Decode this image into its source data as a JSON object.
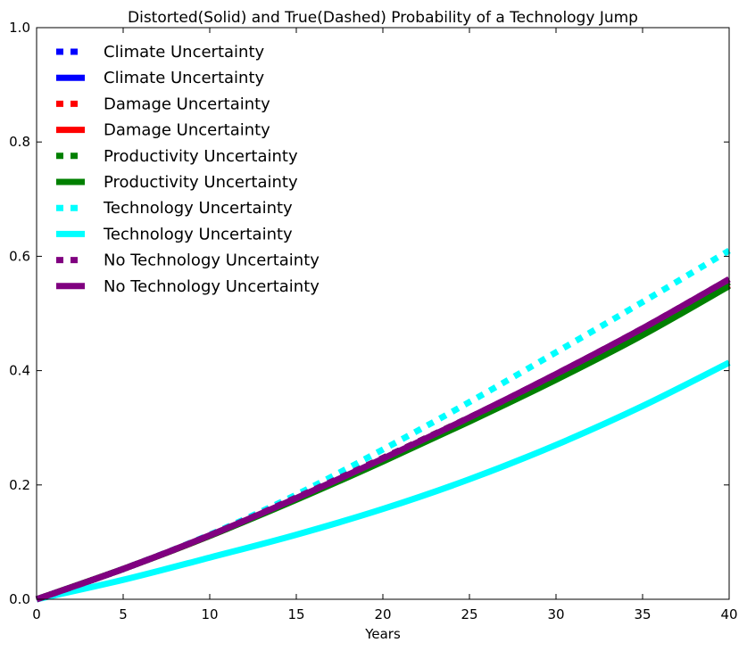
{
  "chart_data": {
    "type": "line",
    "title": "Distorted(Solid) and True(Dashed) Probability of a Technology Jump",
    "xlabel": "Years",
    "ylabel": "",
    "xlim": [
      0,
      40
    ],
    "ylim": [
      0,
      1.0
    ],
    "x_ticks": [
      0,
      5,
      10,
      15,
      20,
      25,
      30,
      35,
      40
    ],
    "y_ticks": [
      0.0,
      0.2,
      0.4,
      0.6,
      0.8,
      1.0
    ],
    "x_tick_labels": [
      "0",
      "5",
      "10",
      "15",
      "20",
      "25",
      "30",
      "35",
      "40"
    ],
    "y_tick_labels": [
      "0.0",
      "0.2",
      "0.4",
      "0.6",
      "0.8",
      "1.0"
    ],
    "grid": false,
    "legend_position": "top-left",
    "x": [
      0,
      5,
      10,
      15,
      20,
      25,
      30,
      35,
      40
    ],
    "series": [
      {
        "name": "Climate Uncertainty",
        "style": "dashed",
        "color": "#0000ff",
        "values": [
          0,
          0.053,
          0.112,
          0.178,
          0.247,
          0.318,
          0.392,
          0.47,
          0.555
        ]
      },
      {
        "name": "Climate Uncertainty",
        "style": "solid",
        "color": "#0000ff",
        "values": [
          0,
          0.053,
          0.111,
          0.175,
          0.243,
          0.314,
          0.387,
          0.465,
          0.55
        ]
      },
      {
        "name": "Damage Uncertainty",
        "style": "dashed",
        "color": "#ff0000",
        "values": [
          0,
          0.053,
          0.112,
          0.178,
          0.247,
          0.318,
          0.392,
          0.47,
          0.555
        ]
      },
      {
        "name": "Damage Uncertainty",
        "style": "solid",
        "color": "#ff0000",
        "values": [
          0,
          0.053,
          0.111,
          0.175,
          0.243,
          0.314,
          0.387,
          0.465,
          0.55
        ]
      },
      {
        "name": "Productivity Uncertainty",
        "style": "dashed",
        "color": "#008000",
        "values": [
          0,
          0.053,
          0.112,
          0.178,
          0.247,
          0.318,
          0.392,
          0.47,
          0.555
        ]
      },
      {
        "name": "Productivity Uncertainty",
        "style": "solid",
        "color": "#008000",
        "values": [
          0,
          0.053,
          0.111,
          0.174,
          0.241,
          0.311,
          0.384,
          0.462,
          0.548
        ]
      },
      {
        "name": "Technology Uncertainty",
        "style": "dashed",
        "color": "#00ffff",
        "values": [
          0,
          0.053,
          0.113,
          0.183,
          0.262,
          0.345,
          0.432,
          0.52,
          0.61
        ]
      },
      {
        "name": "Technology Uncertainty",
        "style": "solid",
        "color": "#00ffff",
        "values": [
          0,
          0.034,
          0.073,
          0.113,
          0.158,
          0.21,
          0.27,
          0.338,
          0.414
        ]
      },
      {
        "name": "No Technology Uncertainty",
        "style": "dashed",
        "color": "#800080",
        "values": [
          0,
          0.053,
          0.112,
          0.178,
          0.247,
          0.318,
          0.394,
          0.474,
          0.56
        ]
      },
      {
        "name": "No Technology Uncertainty",
        "style": "solid",
        "color": "#800080",
        "values": [
          0,
          0.053,
          0.112,
          0.177,
          0.246,
          0.318,
          0.394,
          0.474,
          0.56
        ]
      }
    ]
  }
}
